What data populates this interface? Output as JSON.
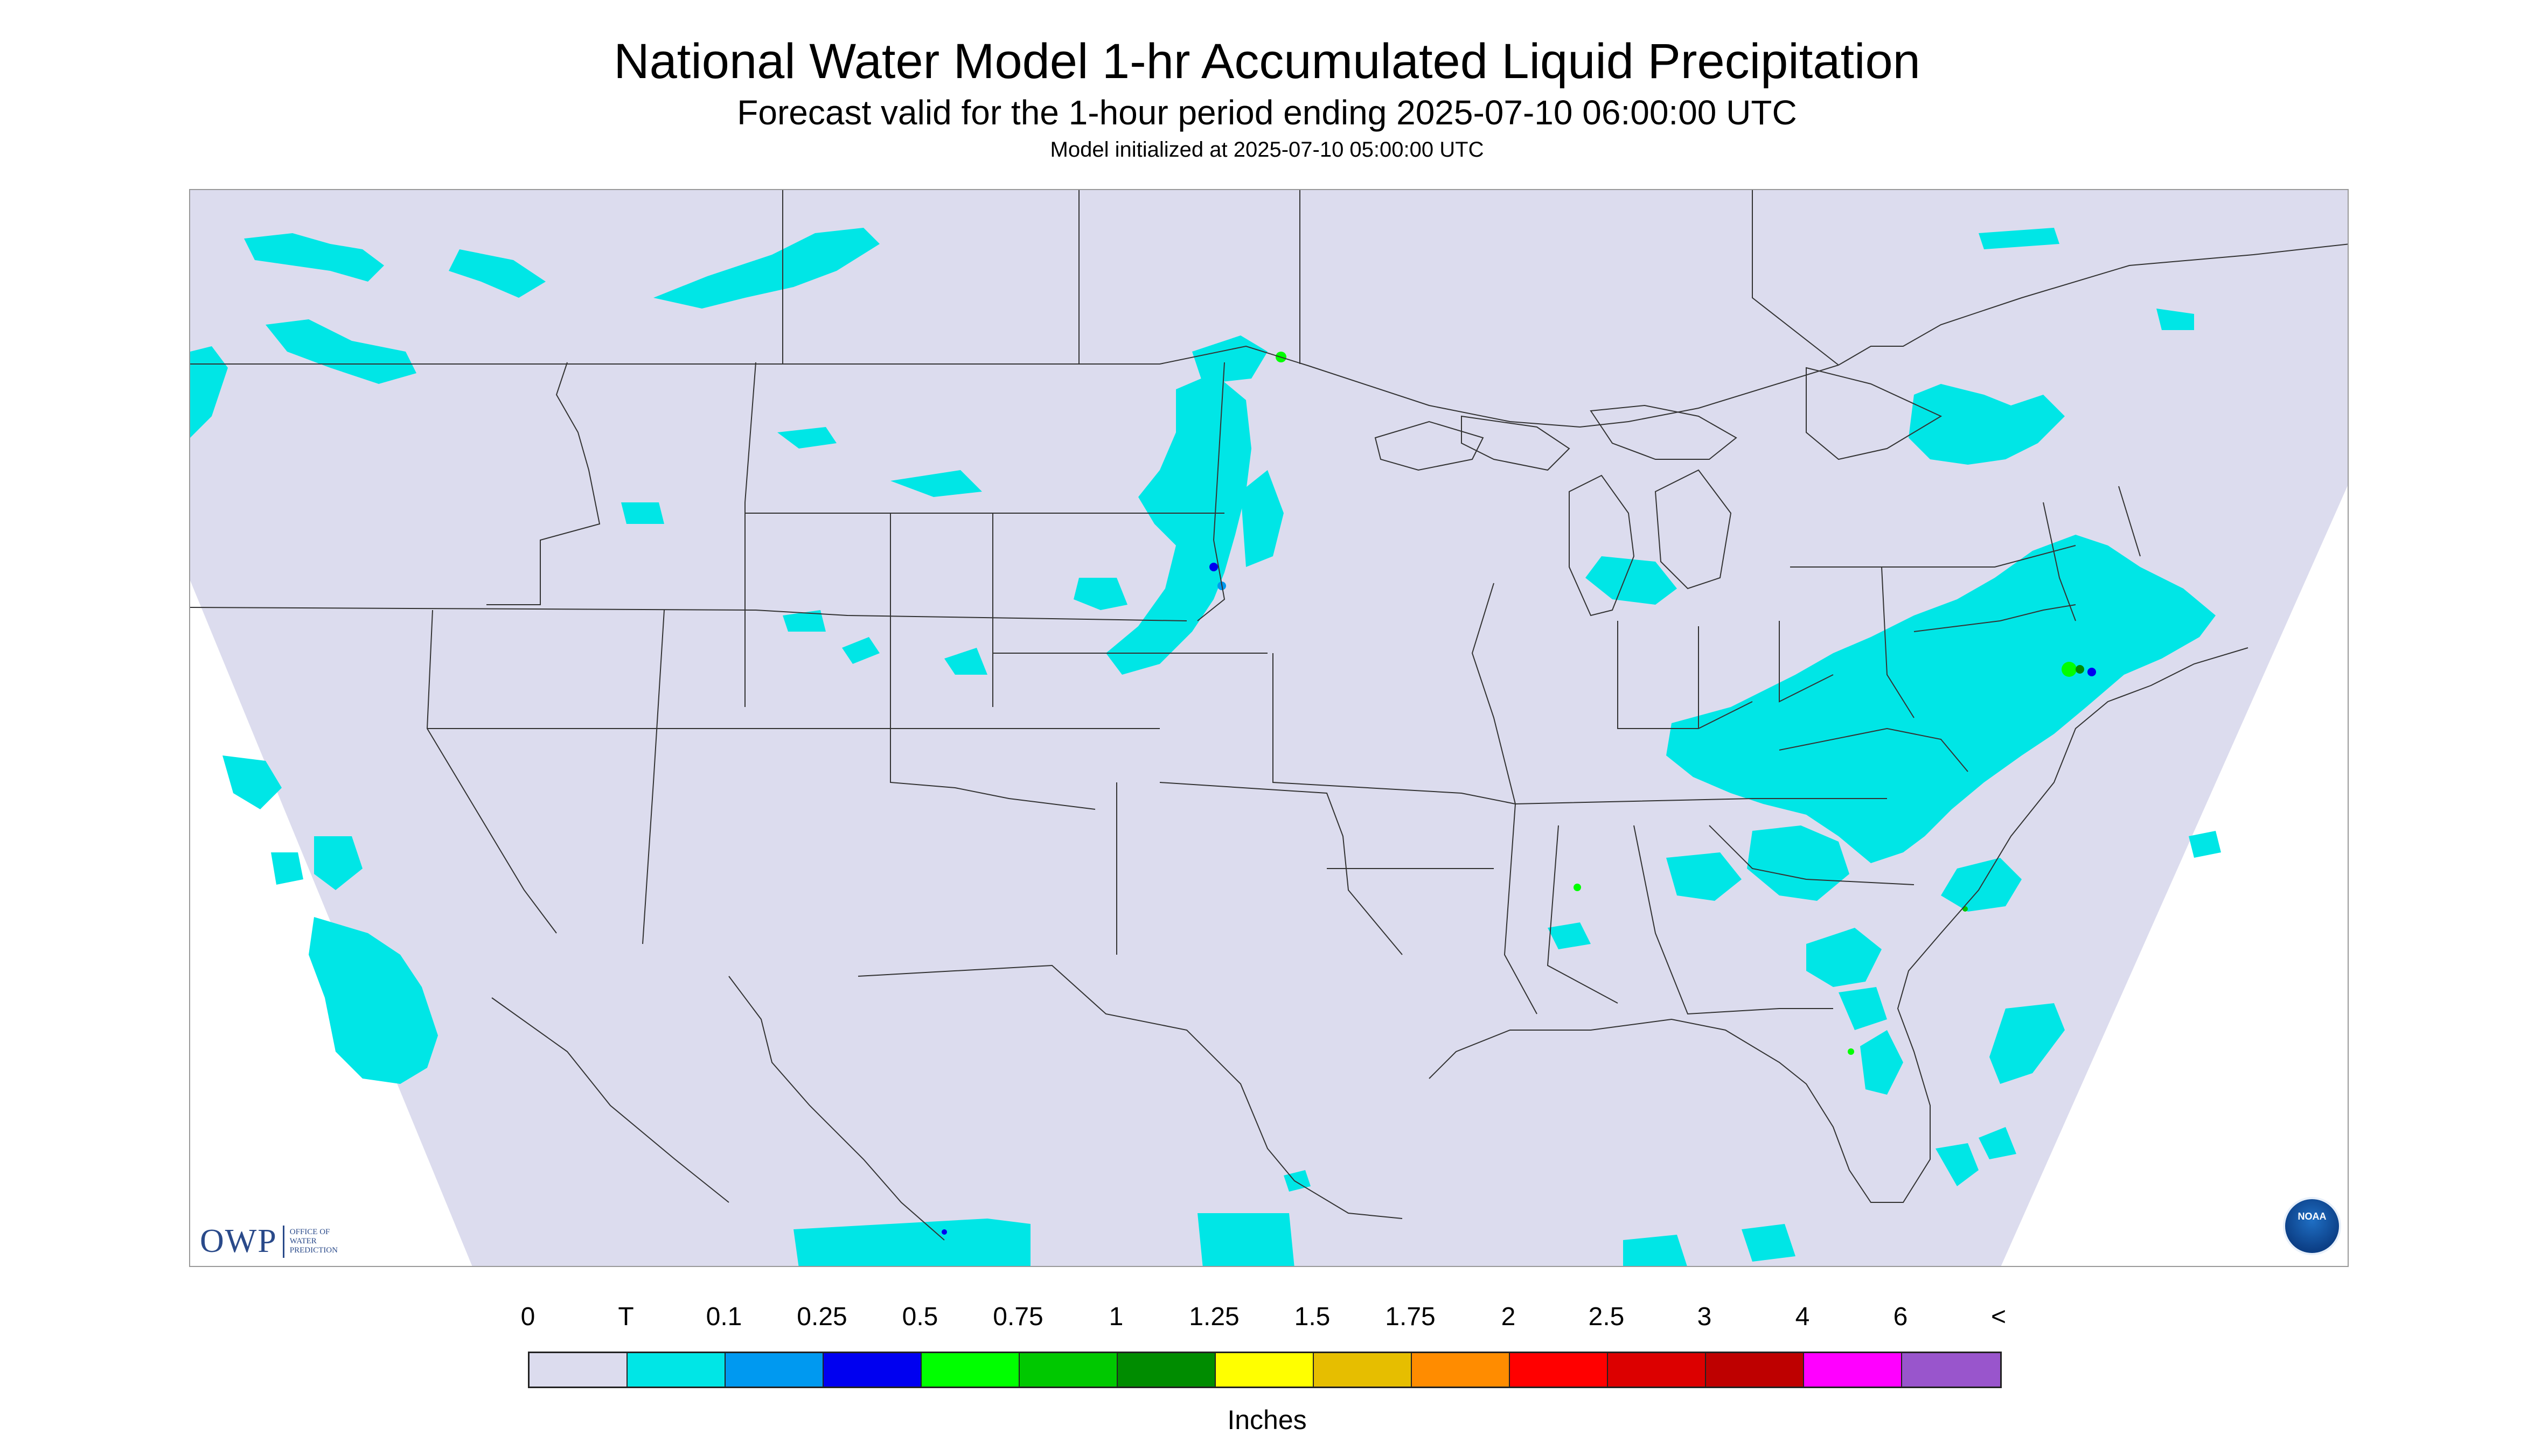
{
  "title": "National Water Model 1-hr Accumulated Liquid Precipitation",
  "subtitle": "Forecast valid for the 1-hour period ending 2025-07-10 06:00:00 UTC",
  "init_text": "Model initialized at 2025-07-10 05:00:00 UTC",
  "logos": {
    "owp_letters": "OWP",
    "owp_lines": [
      "Office of",
      "Water",
      "Prediction"
    ],
    "noaa": "NOAA"
  },
  "legend": {
    "labels": [
      "0",
      "T",
      "0.1",
      "0.25",
      "0.5",
      "0.75",
      "1",
      "1.25",
      "1.5",
      "1.75",
      "2",
      "2.5",
      "3",
      "4",
      "6",
      "<"
    ],
    "colors": [
      "#dcdcee",
      "#00e6e6",
      "#0099f0",
      "#0000f0",
      "#00ff00",
      "#00c800",
      "#008c00",
      "#ffff00",
      "#e6be00",
      "#ff8c00",
      "#ff0000",
      "#dc0000",
      "#be0000",
      "#ff00ff",
      "#9955cc"
    ],
    "units": "Inches"
  },
  "map_colors": {
    "background": "#dcdcee",
    "outside_domain": "#ffffff",
    "lines": "#333333"
  }
}
